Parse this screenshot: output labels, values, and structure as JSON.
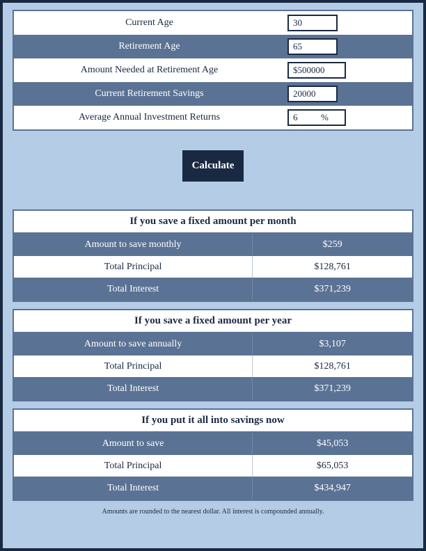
{
  "inputs": {
    "rows": [
      {
        "label": "Current Age",
        "value": "30",
        "style": "white",
        "wide": false
      },
      {
        "label": "Retirement Age",
        "value": "65",
        "style": "blue",
        "wide": false
      },
      {
        "label": "Amount Needed at Retirement Age",
        "value": "$500000",
        "style": "white",
        "wide": true
      },
      {
        "label": "Current Retirement Savings",
        "value": "20000",
        "style": "blue",
        "wide": false
      }
    ],
    "returns_label": "Average Annual Investment Returns",
    "returns_value": "6",
    "returns_suffix": "%"
  },
  "calculate_label": "Calculate",
  "results": [
    {
      "title": "If you save a fixed amount per month",
      "rows": [
        {
          "label": "Amount to save monthly",
          "value": "$259",
          "style": "blue"
        },
        {
          "label": "Total Principal",
          "value": "$128,761",
          "style": "white"
        },
        {
          "label": "Total Interest",
          "value": "$371,239",
          "style": "blue"
        }
      ]
    },
    {
      "title": "If you save a fixed amount per year",
      "rows": [
        {
          "label": "Amount to save annually",
          "value": "$3,107",
          "style": "blue"
        },
        {
          "label": "Total Principal",
          "value": "$128,761",
          "style": "white"
        },
        {
          "label": "Total Interest",
          "value": "$371,239",
          "style": "blue"
        }
      ]
    },
    {
      "title": "If you put it all into savings now",
      "rows": [
        {
          "label": "Amount to save",
          "value": "$45,053",
          "style": "blue"
        },
        {
          "label": "Total Principal",
          "value": "$65,053",
          "style": "white"
        },
        {
          "label": "Total Interest",
          "value": "$434,947",
          "style": "blue"
        }
      ]
    }
  ],
  "footnote": "Amounts are rounded to the nearest dollar. All interest is compounded annually.",
  "colors": {
    "page_bg": "#b5cce6",
    "dark": "#1a2942",
    "row_blue": "#5a7294",
    "white": "#ffffff"
  }
}
